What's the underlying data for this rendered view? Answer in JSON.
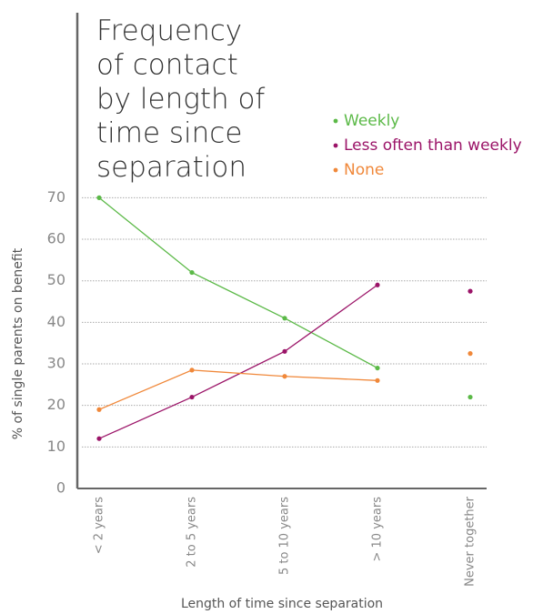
{
  "chart_data": {
    "type": "line",
    "title": [
      "Frequency",
      "of contact",
      "by length of",
      "time since",
      "separation"
    ],
    "y_label": "% of single parents on benefit",
    "x_label": "Length of time since separation",
    "categories": [
      "< 2 years",
      "2 to 5 years",
      "5 to 10 years",
      "> 10 years",
      "Never together"
    ],
    "series": [
      {
        "name": "Weekly",
        "color": "#5bb947",
        "values": [
          70,
          52,
          41,
          29,
          22
        ]
      },
      {
        "name": "Less often than weekly",
        "color": "#9b1468",
        "values": [
          12,
          22,
          33,
          49,
          47.5
        ]
      },
      {
        "name": "None",
        "color": "#f0883a",
        "values": [
          19,
          28.5,
          27,
          26,
          32.5
        ]
      }
    ],
    "ylim": [
      0,
      76
    ],
    "yticks": [
      0,
      10,
      20,
      30,
      40,
      50,
      60,
      70
    ],
    "grid": true
  }
}
